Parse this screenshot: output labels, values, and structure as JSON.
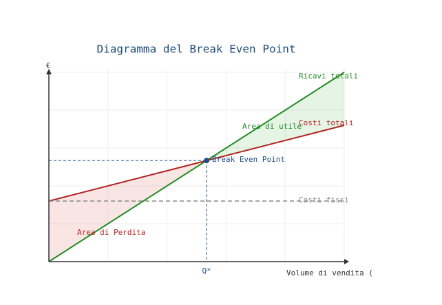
{
  "chart_data": {
    "type": "line",
    "title": "Diagramma del Break Even Point",
    "y_label": "€",
    "x_label": "Volume di vendita (",
    "x": [
      0,
      5
    ],
    "series": [
      {
        "name": "Ricavi totali",
        "color": "#228b22",
        "values": [
          0,
          5
        ]
      },
      {
        "name": "Costi totali",
        "color": "#b22222",
        "values": [
          1.6,
          3.6
        ]
      },
      {
        "name": "Costi fissi",
        "color": "#888888",
        "values": [
          1.6,
          1.6
        ],
        "dashed": true
      }
    ],
    "break_even": {
      "label": "Break Even Point",
      "x": 2.67,
      "y": 2.67,
      "x_tick": "Q*",
      "color": "#1f4e8c"
    },
    "annotations": [
      "Area di utile",
      "Area di Perdita"
    ],
    "xlim": [
      0,
      5
    ],
    "ylim": [
      0,
      5.1
    ],
    "xticks": [
      1,
      2,
      3,
      4,
      5
    ],
    "yticks": [
      1,
      2,
      3,
      4,
      5
    ],
    "grid": true
  }
}
